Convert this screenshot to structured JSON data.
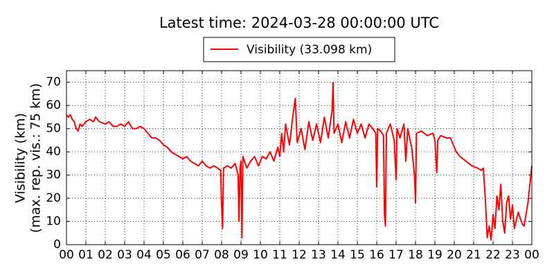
{
  "chart_data": {
    "type": "line",
    "title": "Latest time: 2024-03-28 00:00:00 UTC",
    "y_label": [
      "Visibility (km)",
      "(max. rep. vis.: 75 km)"
    ],
    "x": [
      0.0,
      0.1,
      0.2,
      0.3,
      0.4,
      0.5,
      0.6,
      0.7,
      0.8,
      1.0,
      1.2,
      1.4,
      1.5,
      1.7,
      2.0,
      2.2,
      2.4,
      2.6,
      2.8,
      3.0,
      3.2,
      3.4,
      3.6,
      3.8,
      4.0,
      4.2,
      4.4,
      4.6,
      4.8,
      5.0,
      5.2,
      5.4,
      5.6,
      5.8,
      6.0,
      6.2,
      6.4,
      6.6,
      6.8,
      7.0,
      7.2,
      7.4,
      7.6,
      7.8,
      7.95,
      8.0,
      8.05,
      8.1,
      8.3,
      8.5,
      8.7,
      8.85,
      8.9,
      8.95,
      9.0,
      9.05,
      9.1,
      9.3,
      9.5,
      9.7,
      9.9,
      10.1,
      10.3,
      10.5,
      10.7,
      10.9,
      11.0,
      11.1,
      11.2,
      11.3,
      11.5,
      11.7,
      11.8,
      11.9,
      12.1,
      12.3,
      12.5,
      12.7,
      12.9,
      13.1,
      13.3,
      13.5,
      13.7,
      13.75,
      13.8,
      14.0,
      14.2,
      14.4,
      14.6,
      14.8,
      15.0,
      15.2,
      15.4,
      15.6,
      15.8,
      15.95,
      16.0,
      16.05,
      16.2,
      16.35,
      16.4,
      16.45,
      16.5,
      16.7,
      16.9,
      17.0,
      17.05,
      17.2,
      17.4,
      17.5,
      17.6,
      17.8,
      17.95,
      18.0,
      18.05,
      18.3,
      18.6,
      18.9,
      19.0,
      19.1,
      19.15,
      19.3,
      19.6,
      19.8,
      19.9,
      20.1,
      20.3,
      20.6,
      20.9,
      21.2,
      21.4,
      21.5,
      21.6,
      21.7,
      21.8,
      21.9,
      22.0,
      22.1,
      22.2,
      22.3,
      22.4,
      22.5,
      22.6,
      22.7,
      22.8,
      22.9,
      23.0,
      23.1,
      23.3,
      23.5,
      23.6,
      23.8,
      24.0
    ],
    "series": [
      {
        "name": "Visibility (33.098 km)",
        "color": "#ff0000",
        "values": [
          56,
          55,
          56,
          54,
          53,
          50,
          49,
          52,
          51,
          53,
          54,
          53,
          55,
          53,
          52,
          53,
          51,
          51,
          52,
          51,
          53,
          50,
          50,
          51,
          50,
          48,
          46,
          46,
          45,
          43,
          42,
          40,
          39,
          38,
          37,
          38,
          36,
          35,
          34,
          36,
          34,
          33,
          34,
          33,
          32,
          17,
          7,
          33,
          34,
          33,
          35,
          30,
          10,
          33,
          36,
          3,
          38,
          33,
          36,
          38,
          34,
          38,
          37,
          40,
          36,
          42,
          38,
          48,
          40,
          52,
          43,
          57,
          63,
          44,
          50,
          41,
          53,
          45,
          52,
          44,
          55,
          46,
          58,
          70,
          48,
          52,
          44,
          53,
          46,
          54,
          48,
          52,
          46,
          52,
          50,
          48,
          25,
          50,
          49,
          47,
          13,
          8,
          48,
          52,
          45,
          28,
          50,
          46,
          52,
          36,
          50,
          42,
          30,
          18,
          48,
          49,
          47,
          48,
          45,
          31,
          45,
          47,
          46,
          46,
          44,
          40,
          38,
          36,
          34,
          33,
          32,
          33,
          20,
          3,
          8,
          2,
          13,
          7,
          21,
          15,
          26,
          10,
          5,
          18,
          21,
          11,
          17,
          7,
          14,
          9,
          8,
          18,
          34
        ]
      }
    ],
    "xlim": [
      0,
      24
    ],
    "xticks": [
      {
        "value": 0,
        "label": "00"
      },
      {
        "value": 1,
        "label": "01"
      },
      {
        "value": 2,
        "label": "02"
      },
      {
        "value": 3,
        "label": "03"
      },
      {
        "value": 4,
        "label": "04"
      },
      {
        "value": 5,
        "label": "05"
      },
      {
        "value": 6,
        "label": "06"
      },
      {
        "value": 7,
        "label": "07"
      },
      {
        "value": 8,
        "label": "08"
      },
      {
        "value": 9,
        "label": "09"
      },
      10,
      11,
      12,
      13,
      14,
      15,
      16,
      17,
      18,
      19,
      20,
      21,
      22,
      23,
      {
        "value": 24,
        "label": "00"
      }
    ],
    "ylim": [
      0,
      75
    ],
    "yticks": [
      0,
      10,
      20,
      30,
      40,
      50,
      60,
      70
    ],
    "grid": true,
    "legend": "top"
  }
}
